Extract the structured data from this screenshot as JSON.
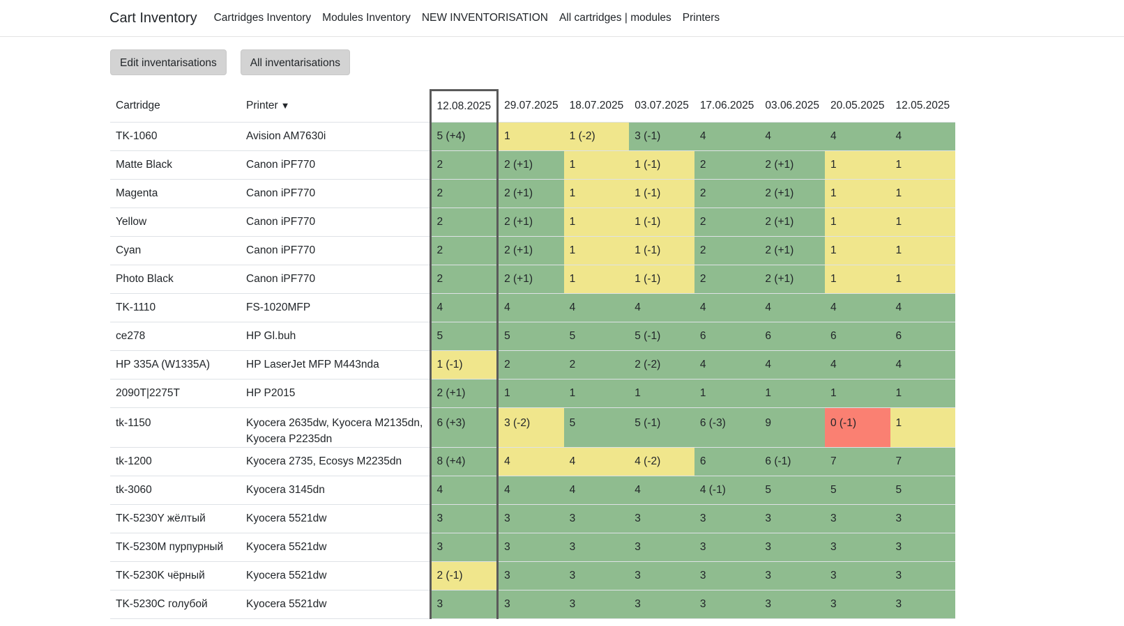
{
  "nav": {
    "brand": "Cart Inventory",
    "links": [
      "Cartridges Inventory",
      "Modules Inventory",
      "NEW INVENTORISATION",
      "All cartridges | modules",
      "Printers"
    ]
  },
  "toolbar": {
    "edit_label": "Edit inventarisations",
    "all_label": "All inventarisations"
  },
  "colors": {
    "green": "#8fbc8f",
    "yellow": "#f0e68c",
    "red": "#fa8072"
  },
  "table": {
    "col_cartridge": "Cartridge",
    "col_printer": "Printer",
    "sort_icon": "triangle-down-icon",
    "current_date_index": 0,
    "dates": [
      "12.08.2025",
      "29.07.2025",
      "18.07.2025",
      "03.07.2025",
      "17.06.2025",
      "03.06.2025",
      "20.05.2025",
      "12.05.2025"
    ],
    "rows": [
      {
        "cartridge": "TK-1060",
        "printer": "Avision AM7630i",
        "cells": [
          [
            "5 (+4)",
            "g"
          ],
          [
            "1",
            "y"
          ],
          [
            "1 (-2)",
            "y"
          ],
          [
            "3 (-1)",
            "g"
          ],
          [
            "4",
            "g"
          ],
          [
            "4",
            "g"
          ],
          [
            "4",
            "g"
          ],
          [
            "4",
            "g"
          ]
        ]
      },
      {
        "cartridge": "Matte Black",
        "printer": "Canon iPF770",
        "cells": [
          [
            "2",
            "g"
          ],
          [
            "2 (+1)",
            "g"
          ],
          [
            "1",
            "y"
          ],
          [
            "1 (-1)",
            "y"
          ],
          [
            "2",
            "g"
          ],
          [
            "2 (+1)",
            "g"
          ],
          [
            "1",
            "y"
          ],
          [
            "1",
            "y"
          ]
        ]
      },
      {
        "cartridge": "Magenta",
        "printer": "Canon iPF770",
        "cells": [
          [
            "2",
            "g"
          ],
          [
            "2 (+1)",
            "g"
          ],
          [
            "1",
            "y"
          ],
          [
            "1 (-1)",
            "y"
          ],
          [
            "2",
            "g"
          ],
          [
            "2 (+1)",
            "g"
          ],
          [
            "1",
            "y"
          ],
          [
            "1",
            "y"
          ]
        ]
      },
      {
        "cartridge": "Yellow",
        "printer": "Canon iPF770",
        "cells": [
          [
            "2",
            "g"
          ],
          [
            "2 (+1)",
            "g"
          ],
          [
            "1",
            "y"
          ],
          [
            "1 (-1)",
            "y"
          ],
          [
            "2",
            "g"
          ],
          [
            "2 (+1)",
            "g"
          ],
          [
            "1",
            "y"
          ],
          [
            "1",
            "y"
          ]
        ]
      },
      {
        "cartridge": "Cyan",
        "printer": "Canon iPF770",
        "cells": [
          [
            "2",
            "g"
          ],
          [
            "2 (+1)",
            "g"
          ],
          [
            "1",
            "y"
          ],
          [
            "1 (-1)",
            "y"
          ],
          [
            "2",
            "g"
          ],
          [
            "2 (+1)",
            "g"
          ],
          [
            "1",
            "y"
          ],
          [
            "1",
            "y"
          ]
        ]
      },
      {
        "cartridge": "Photo Black",
        "printer": "Canon iPF770",
        "cells": [
          [
            "2",
            "g"
          ],
          [
            "2 (+1)",
            "g"
          ],
          [
            "1",
            "y"
          ],
          [
            "1 (-1)",
            "y"
          ],
          [
            "2",
            "g"
          ],
          [
            "2 (+1)",
            "g"
          ],
          [
            "1",
            "y"
          ],
          [
            "1",
            "y"
          ]
        ]
      },
      {
        "cartridge": "TK-1110",
        "printer": "FS-1020MFP",
        "cells": [
          [
            "4",
            "g"
          ],
          [
            "4",
            "g"
          ],
          [
            "4",
            "g"
          ],
          [
            "4",
            "g"
          ],
          [
            "4",
            "g"
          ],
          [
            "4",
            "g"
          ],
          [
            "4",
            "g"
          ],
          [
            "4",
            "g"
          ]
        ]
      },
      {
        "cartridge": "ce278",
        "printer": "HP Gl.buh",
        "cells": [
          [
            "5",
            "g"
          ],
          [
            "5",
            "g"
          ],
          [
            "5",
            "g"
          ],
          [
            "5 (-1)",
            "g"
          ],
          [
            "6",
            "g"
          ],
          [
            "6",
            "g"
          ],
          [
            "6",
            "g"
          ],
          [
            "6",
            "g"
          ]
        ]
      },
      {
        "cartridge": "HP 335A (W1335A)",
        "printer": "HP LaserJet MFP M443nda",
        "cells": [
          [
            "1 (-1)",
            "y"
          ],
          [
            "2",
            "g"
          ],
          [
            "2",
            "g"
          ],
          [
            "2 (-2)",
            "g"
          ],
          [
            "4",
            "g"
          ],
          [
            "4",
            "g"
          ],
          [
            "4",
            "g"
          ],
          [
            "4",
            "g"
          ]
        ]
      },
      {
        "cartridge": "2090T|2275T",
        "printer": "HP P2015",
        "cells": [
          [
            "2 (+1)",
            "g"
          ],
          [
            "1",
            "g"
          ],
          [
            "1",
            "g"
          ],
          [
            "1",
            "g"
          ],
          [
            "1",
            "g"
          ],
          [
            "1",
            "g"
          ],
          [
            "1",
            "g"
          ],
          [
            "1",
            "g"
          ]
        ]
      },
      {
        "cartridge": "tk-1150",
        "printer": "Kyocera 2635dw, Kyocera M2135dn, Kyocera P2235dn",
        "cells": [
          [
            "6 (+3)",
            "g"
          ],
          [
            "3 (-2)",
            "y"
          ],
          [
            "5",
            "g"
          ],
          [
            "5 (-1)",
            "g"
          ],
          [
            "6 (-3)",
            "g"
          ],
          [
            "9",
            "g"
          ],
          [
            "0 (-1)",
            "r"
          ],
          [
            "1",
            "y"
          ]
        ]
      },
      {
        "cartridge": "tk-1200",
        "printer": "Kyocera 2735, Ecosys M2235dn",
        "cells": [
          [
            "8 (+4)",
            "g"
          ],
          [
            "4",
            "y"
          ],
          [
            "4",
            "y"
          ],
          [
            "4 (-2)",
            "y"
          ],
          [
            "6",
            "g"
          ],
          [
            "6 (-1)",
            "g"
          ],
          [
            "7",
            "g"
          ],
          [
            "7",
            "g"
          ]
        ]
      },
      {
        "cartridge": "tk-3060",
        "printer": "Kyocera 3145dn",
        "cells": [
          [
            "4",
            "g"
          ],
          [
            "4",
            "g"
          ],
          [
            "4",
            "g"
          ],
          [
            "4",
            "g"
          ],
          [
            "4 (-1)",
            "g"
          ],
          [
            "5",
            "g"
          ],
          [
            "5",
            "g"
          ],
          [
            "5",
            "g"
          ]
        ]
      },
      {
        "cartridge": "TK-5230Y жёлтый",
        "printer": "Kyocera 5521dw",
        "cells": [
          [
            "3",
            "g"
          ],
          [
            "3",
            "g"
          ],
          [
            "3",
            "g"
          ],
          [
            "3",
            "g"
          ],
          [
            "3",
            "g"
          ],
          [
            "3",
            "g"
          ],
          [
            "3",
            "g"
          ],
          [
            "3",
            "g"
          ]
        ]
      },
      {
        "cartridge": "TK-5230M пурпурный",
        "printer": "Kyocera 5521dw",
        "cells": [
          [
            "3",
            "g"
          ],
          [
            "3",
            "g"
          ],
          [
            "3",
            "g"
          ],
          [
            "3",
            "g"
          ],
          [
            "3",
            "g"
          ],
          [
            "3",
            "g"
          ],
          [
            "3",
            "g"
          ],
          [
            "3",
            "g"
          ]
        ]
      },
      {
        "cartridge": "TK-5230K чёрный",
        "printer": "Kyocera 5521dw",
        "cells": [
          [
            "2 (-1)",
            "y"
          ],
          [
            "3",
            "g"
          ],
          [
            "3",
            "g"
          ],
          [
            "3",
            "g"
          ],
          [
            "3",
            "g"
          ],
          [
            "3",
            "g"
          ],
          [
            "3",
            "g"
          ],
          [
            "3",
            "g"
          ]
        ]
      },
      {
        "cartridge": "TK-5230C голубой",
        "printer": "Kyocera 5521dw",
        "cells": [
          [
            "3",
            "g"
          ],
          [
            "3",
            "g"
          ],
          [
            "3",
            "g"
          ],
          [
            "3",
            "g"
          ],
          [
            "3",
            "g"
          ],
          [
            "3",
            "g"
          ],
          [
            "3",
            "g"
          ],
          [
            "3",
            "g"
          ]
        ]
      }
    ]
  }
}
